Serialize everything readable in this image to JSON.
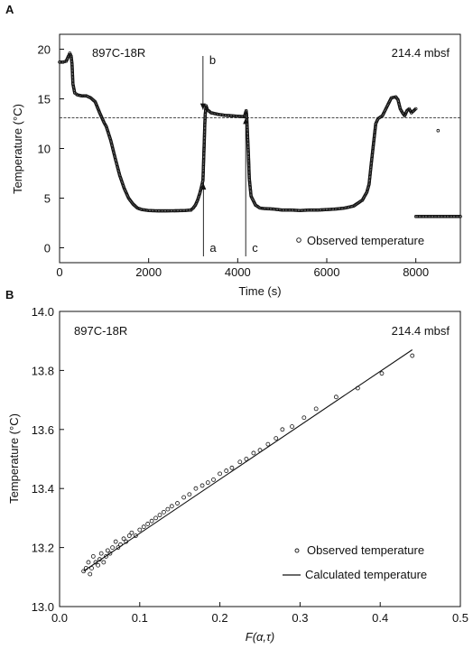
{
  "chart_data": [
    {
      "panel": "A",
      "type": "scatter",
      "sample_label": "897C-18R",
      "depth_label": "214.4 mbsf",
      "xlabel": "Time (s)",
      "ylabel": "Temperature (°C)",
      "xlim": [
        0,
        9000
      ],
      "ylim": [
        -1.5,
        21.5
      ],
      "xticks": [
        0,
        2000,
        4000,
        6000,
        8000
      ],
      "yticks": [
        0,
        5,
        10,
        15,
        20
      ],
      "reference_line_y": 13.1,
      "legend": {
        "placement": "bottom-right",
        "entries": [
          "Observed temperature"
        ]
      },
      "annotations": [
        {
          "text": "a",
          "x": 3230,
          "arrow_to_y": 6.5
        },
        {
          "text": "b",
          "x": 3220,
          "arrow_to_y": 13.9
        },
        {
          "text": "c",
          "x": 4180,
          "arrow_to_y": 13.1
        }
      ],
      "series": [
        {
          "points": [
            [
              0,
              18.7
            ],
            [
              80,
              18.7
            ],
            [
              150,
              18.8
            ],
            [
              200,
              19.3
            ],
            [
              230,
              19.6
            ],
            [
              260,
              19.3
            ],
            [
              280,
              18.5
            ],
            [
              300,
              16.5
            ],
            [
              340,
              15.6
            ],
            [
              400,
              15.4
            ],
            [
              500,
              15.3
            ],
            [
              600,
              15.3
            ],
            [
              700,
              15.1
            ],
            [
              800,
              14.7
            ],
            [
              900,
              13.6
            ],
            [
              1000,
              12.6
            ],
            [
              1050,
              12.2
            ],
            [
              1150,
              10.8
            ],
            [
              1250,
              9.0
            ],
            [
              1350,
              7.3
            ],
            [
              1450,
              6.0
            ],
            [
              1550,
              5.0
            ],
            [
              1650,
              4.4
            ],
            [
              1750,
              4.0
            ],
            [
              1850,
              3.85
            ],
            [
              2000,
              3.75
            ],
            [
              2200,
              3.72
            ],
            [
              2400,
              3.72
            ],
            [
              2600,
              3.73
            ],
            [
              2800,
              3.75
            ],
            [
              2950,
              3.8
            ],
            [
              3000,
              4.0
            ],
            [
              3050,
              4.3
            ],
            [
              3100,
              4.8
            ],
            [
              3150,
              5.5
            ],
            [
              3190,
              6.2
            ],
            [
              3220,
              6.8
            ],
            [
              3240,
              9.5
            ],
            [
              3250,
              10.8
            ],
            [
              3260,
              12.3
            ],
            [
              3270,
              13.4
            ],
            [
              3290,
              14.3
            ],
            [
              3320,
              13.9
            ],
            [
              3400,
              13.6
            ],
            [
              3550,
              13.45
            ],
            [
              3700,
              13.35
            ],
            [
              3850,
              13.3
            ],
            [
              4000,
              13.25
            ],
            [
              4150,
              13.2
            ],
            [
              4190,
              13.8
            ],
            [
              4200,
              13.4
            ],
            [
              4210,
              12.5
            ],
            [
              4220,
              11.5
            ],
            [
              4230,
              10.5
            ],
            [
              4240,
              9.5
            ],
            [
              4260,
              7.0
            ],
            [
              4300,
              5.2
            ],
            [
              4400,
              4.3
            ],
            [
              4500,
              4.0
            ],
            [
              4600,
              3.95
            ],
            [
              4800,
              3.9
            ],
            [
              5000,
              3.8
            ],
            [
              5200,
              3.8
            ],
            [
              5400,
              3.75
            ],
            [
              5600,
              3.8
            ],
            [
              5800,
              3.8
            ],
            [
              6000,
              3.85
            ],
            [
              6200,
              3.9
            ],
            [
              6400,
              4.0
            ],
            [
              6600,
              4.2
            ],
            [
              6800,
              4.8
            ],
            [
              6900,
              5.6
            ],
            [
              6950,
              6.4
            ],
            [
              7000,
              8.5
            ],
            [
              7050,
              10.5
            ],
            [
              7100,
              12.5
            ],
            [
              7150,
              13.0
            ],
            [
              7250,
              13.3
            ],
            [
              7350,
              14.2
            ],
            [
              7450,
              15.1
            ],
            [
              7550,
              15.2
            ],
            [
              7600,
              14.9
            ],
            [
              7650,
              14.0
            ],
            [
              7700,
              13.6
            ],
            [
              7750,
              13.3
            ],
            [
              7800,
              13.8
            ],
            [
              7850,
              14.0
            ],
            [
              7900,
              13.6
            ],
            [
              7950,
              13.8
            ],
            [
              8000,
              14.0
            ],
            [
              8500,
              11.8
            ],
            [
              8000,
              3.15
            ],
            [
              8200,
              3.15
            ],
            [
              8400,
              3.15
            ],
            [
              8600,
              3.15
            ],
            [
              8800,
              3.15
            ],
            [
              9000,
              3.15
            ]
          ]
        }
      ]
    },
    {
      "panel": "B",
      "type": "scatter",
      "sample_label": "897C-18R",
      "depth_label": "214.4 mbsf",
      "xlabel": "F(α,τ)",
      "ylabel": "Temperature (°C)",
      "xlim": [
        0.0,
        0.5
      ],
      "ylim": [
        13.0,
        14.0
      ],
      "xticks": [
        "0.0",
        "0.1",
        "0.2",
        "0.3",
        "0.4",
        "0.5"
      ],
      "yticks": [
        "13.0",
        "13.2",
        "13.4",
        "13.6",
        "13.8",
        "14.0"
      ],
      "legend": {
        "placement": "bottom-right",
        "entries": [
          "Observed temperature",
          "Calculated temperature"
        ]
      },
      "fit_line": [
        [
          0.03,
          13.12
        ],
        [
          0.44,
          13.87
        ]
      ],
      "series": [
        {
          "name": "Observed temperature",
          "points": [
            [
              0.03,
              13.12
            ],
            [
              0.033,
              13.13
            ],
            [
              0.036,
              13.15
            ],
            [
              0.038,
              13.11
            ],
            [
              0.04,
              13.13
            ],
            [
              0.042,
              13.17
            ],
            [
              0.045,
              13.15
            ],
            [
              0.048,
              13.14
            ],
            [
              0.05,
              13.16
            ],
            [
              0.052,
              13.18
            ],
            [
              0.055,
              13.15
            ],
            [
              0.058,
              13.17
            ],
            [
              0.06,
              13.19
            ],
            [
              0.063,
              13.18
            ],
            [
              0.066,
              13.2
            ],
            [
              0.07,
              13.22
            ],
            [
              0.073,
              13.2
            ],
            [
              0.076,
              13.21
            ],
            [
              0.08,
              13.23
            ],
            [
              0.083,
              13.22
            ],
            [
              0.087,
              13.24
            ],
            [
              0.09,
              13.25
            ],
            [
              0.095,
              13.24
            ],
            [
              0.1,
              13.26
            ],
            [
              0.105,
              13.27
            ],
            [
              0.11,
              13.28
            ],
            [
              0.115,
              13.29
            ],
            [
              0.12,
              13.3
            ],
            [
              0.125,
              13.31
            ],
            [
              0.13,
              13.32
            ],
            [
              0.135,
              13.33
            ],
            [
              0.14,
              13.34
            ],
            [
              0.147,
              13.35
            ],
            [
              0.155,
              13.37
            ],
            [
              0.162,
              13.38
            ],
            [
              0.17,
              13.4
            ],
            [
              0.178,
              13.41
            ],
            [
              0.185,
              13.42
            ],
            [
              0.192,
              13.43
            ],
            [
              0.2,
              13.45
            ],
            [
              0.208,
              13.46
            ],
            [
              0.215,
              13.47
            ],
            [
              0.225,
              13.49
            ],
            [
              0.233,
              13.5
            ],
            [
              0.242,
              13.52
            ],
            [
              0.25,
              13.53
            ],
            [
              0.26,
              13.55
            ],
            [
              0.27,
              13.57
            ],
            [
              0.278,
              13.6
            ],
            [
              0.29,
              13.61
            ],
            [
              0.305,
              13.64
            ],
            [
              0.32,
              13.67
            ],
            [
              0.345,
              13.71
            ],
            [
              0.372,
              13.74
            ],
            [
              0.402,
              13.79
            ],
            [
              0.44,
              13.85
            ]
          ]
        }
      ]
    }
  ],
  "labels": {
    "panel_a": "A",
    "panel_b": "B"
  }
}
